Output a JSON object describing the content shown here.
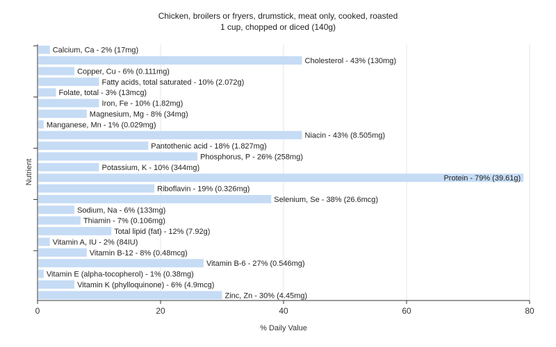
{
  "chart_data": {
    "type": "bar",
    "orientation": "horizontal",
    "title": "Chicken, broilers or fryers, drumstick, meat only, cooked, roasted",
    "subtitle": "1 cup, chopped or diced (140g)",
    "xlabel": "% Daily Value",
    "ylabel": "Nutrient",
    "xlim": [
      0,
      80
    ],
    "xticks": [
      "0",
      "20",
      "40",
      "60",
      "80"
    ],
    "grid": true,
    "bar_color": "#c6dcf5",
    "categories": [
      "Calcium, Ca",
      "Cholesterol",
      "Copper, Cu",
      "Fatty acids, total saturated",
      "Folate, total",
      "Iron, Fe",
      "Magnesium, Mg",
      "Manganese, Mn",
      "Niacin",
      "Pantothenic acid",
      "Phosphorus, P",
      "Potassium, K",
      "Protein",
      "Riboflavin",
      "Selenium, Se",
      "Sodium, Na",
      "Thiamin",
      "Total lipid (fat)",
      "Vitamin A, IU",
      "Vitamin B-12",
      "Vitamin B-6",
      "Vitamin E (alpha-tocopherol)",
      "Vitamin K (phylloquinone)",
      "Zinc, Zn"
    ],
    "values": [
      2,
      43,
      6,
      10,
      3,
      10,
      8,
      1,
      43,
      18,
      26,
      10,
      79,
      19,
      38,
      6,
      7,
      12,
      2,
      8,
      27,
      1,
      6,
      30
    ],
    "labels": [
      "Calcium, Ca - 2% (17mg)",
      "Cholesterol - 43% (130mg)",
      "Copper, Cu - 6% (0.111mg)",
      "Fatty acids, total saturated - 10% (2.072g)",
      "Folate, total - 3% (13mcg)",
      "Iron, Fe - 10% (1.82mg)",
      "Magnesium, Mg - 8% (34mg)",
      "Manganese, Mn - 1% (0.029mg)",
      "Niacin - 43% (8.505mg)",
      "Pantothenic acid - 18% (1.827mg)",
      "Phosphorus, P - 26% (258mg)",
      "Potassium, K - 10% (344mg)",
      "Protein - 79% (39.61g)",
      "Riboflavin - 19% (0.326mg)",
      "Selenium, Se - 38% (26.6mcg)",
      "Sodium, Na - 6% (133mg)",
      "Thiamin - 7% (0.106mg)",
      "Total lipid (fat) - 12% (7.92g)",
      "Vitamin A, IU - 2% (84IU)",
      "Vitamin B-12 - 8% (0.48mcg)",
      "Vitamin B-6 - 27% (0.546mg)",
      "Vitamin E (alpha-tocopherol) - 1% (0.38mg)",
      "Vitamin K (phylloquinone) - 6% (4.9mcg)",
      "Zinc, Zn - 30% (4.45mg)"
    ]
  }
}
